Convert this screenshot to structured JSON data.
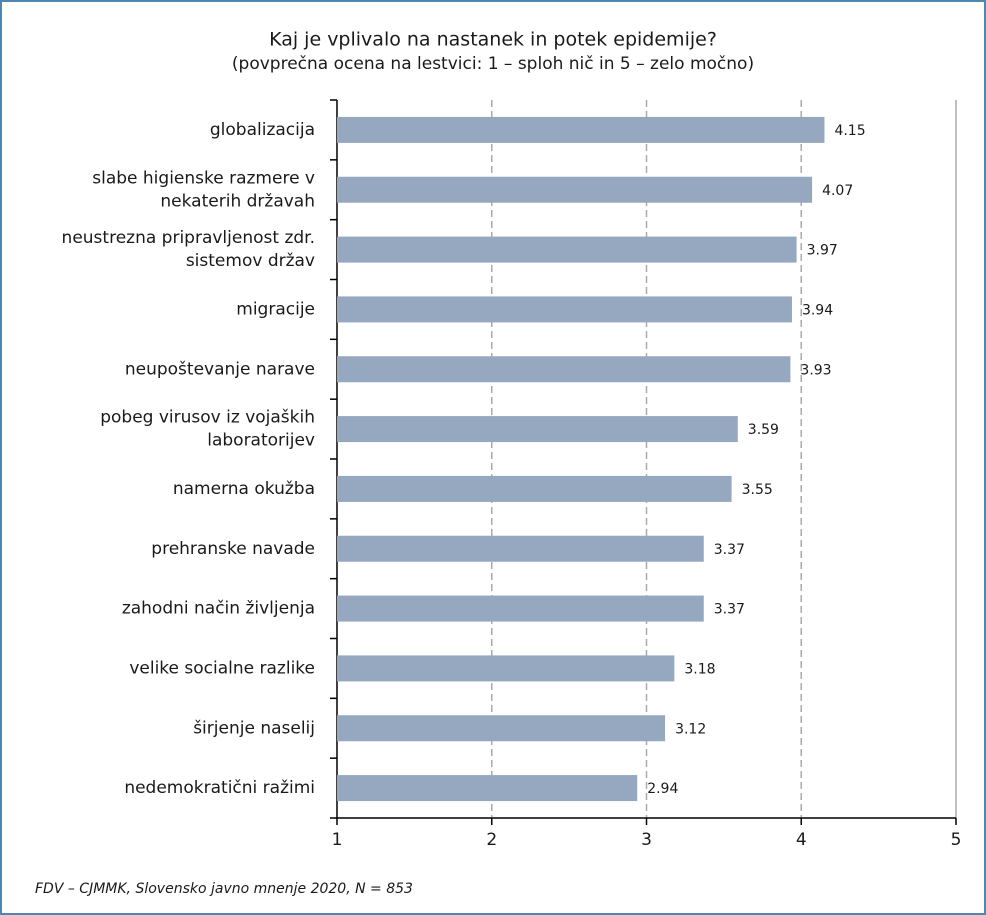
{
  "chart_data": {
    "type": "bar",
    "orientation": "horizontal",
    "title": "Kaj je vplivalo na nastanek in potek epidemije?",
    "subtitle": "(povprečna ocena na lestvici: 1 – sploh nič in 5 – zelo močno)",
    "categories": [
      [
        "globalizacija"
      ],
      [
        "slabe higienske razmere v",
        "nekaterih državah"
      ],
      [
        "neustrezna pripravljenost zdr.",
        "sistemov držav"
      ],
      [
        "migracije"
      ],
      [
        "neupoštevanje narave"
      ],
      [
        "pobeg virusov iz vojaških",
        "laboratorijev"
      ],
      [
        "namerna okužba"
      ],
      [
        "prehranske navade"
      ],
      [
        "zahodni način življenja"
      ],
      [
        "velike socialne razlike"
      ],
      [
        "širjenje naselij"
      ],
      [
        "nedemokratični ražimi"
      ]
    ],
    "values": [
      4.15,
      4.07,
      3.97,
      3.94,
      3.93,
      3.59,
      3.55,
      3.37,
      3.37,
      3.18,
      3.12,
      2.94
    ],
    "color": "#95a8c0",
    "xlim": [
      1,
      5
    ],
    "xticks": [
      1,
      2,
      3,
      4,
      5
    ],
    "grid": true,
    "source": "FDV – CJMMK, Slovensko javno mnenje 2020, N = 853"
  }
}
